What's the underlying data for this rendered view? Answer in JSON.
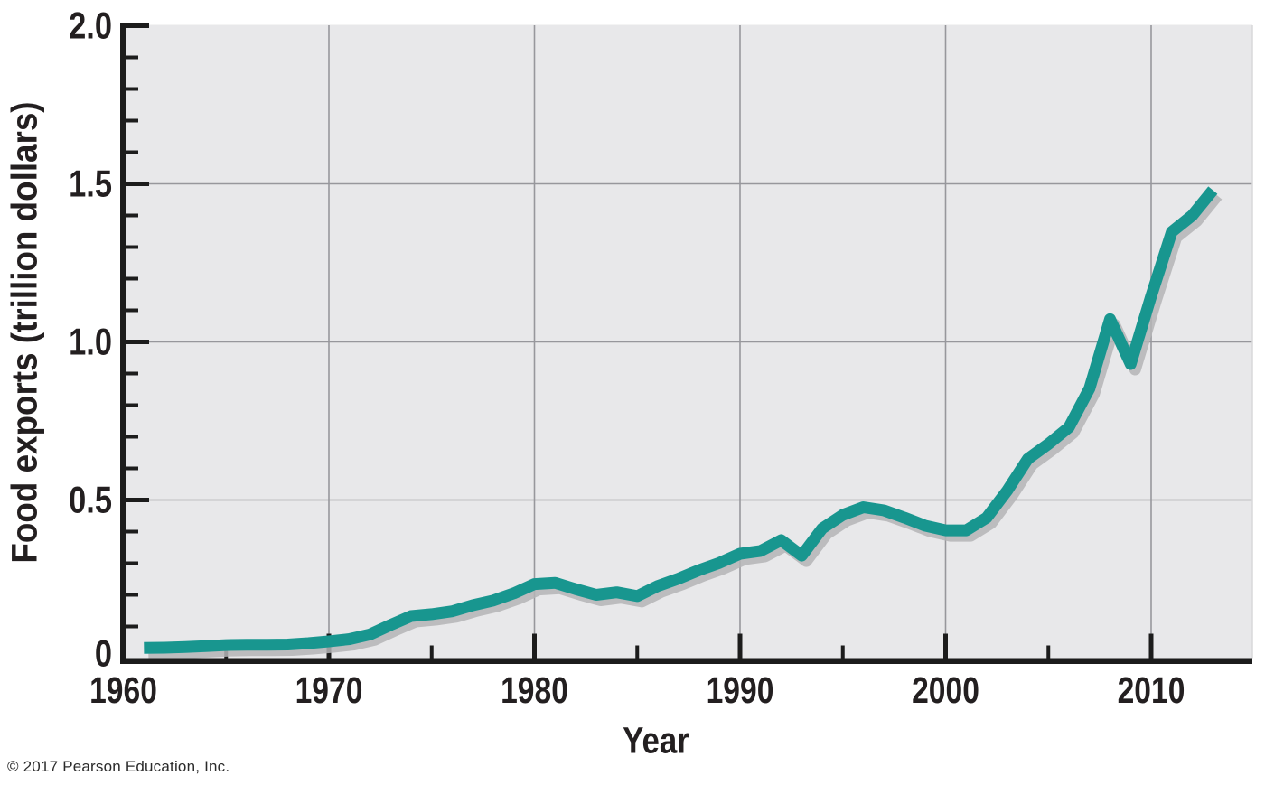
{
  "page": {
    "footer": "© 2017 Pearson Education, Inc."
  },
  "chart_data": {
    "type": "line",
    "title": "",
    "xlabel": "Year",
    "ylabel": "Food exports (trillion dollars)",
    "x_range": [
      1960,
      2015
    ],
    "y_range": [
      0,
      2.0
    ],
    "x_major_ticks": [
      1960,
      1970,
      1980,
      1990,
      2000,
      2010
    ],
    "x_minor_ticks": [
      1965,
      1975,
      1985,
      1995,
      2005
    ],
    "y_major_ticks": [
      {
        "value": 0,
        "label": "0"
      },
      {
        "value": 0.5,
        "label": "0.5"
      },
      {
        "value": 1.0,
        "label": "1.0"
      },
      {
        "value": 1.5,
        "label": "1.5"
      },
      {
        "value": 2.0,
        "label": "2.0"
      }
    ],
    "y_minor_step": 0.1,
    "grid": {
      "vertical_at": [
        1970,
        1980,
        1990,
        2000,
        2010
      ],
      "horizontal_at": [
        0.5,
        1.0,
        1.5
      ]
    },
    "legend": "none",
    "colors": {
      "plot_background": "#e8e8ea",
      "gridline": "#97979c",
      "plot_right_edge": "#d8d8da",
      "axis": "#1c1c1c",
      "text": "#231f20",
      "line": "#18968f",
      "line_shadow": "#b4b4b6"
    },
    "series": [
      {
        "name": "food_exports",
        "color": "#18968f",
        "x": [
          1961,
          1962,
          1963,
          1964,
          1965,
          1966,
          1967,
          1968,
          1969,
          1970,
          1971,
          1972,
          1973,
          1974,
          1975,
          1976,
          1977,
          1978,
          1979,
          1980,
          1981,
          1982,
          1983,
          1984,
          1985,
          1986,
          1987,
          1988,
          1989,
          1990,
          1991,
          1992,
          1993,
          1994,
          1995,
          1996,
          1997,
          1998,
          1999,
          2000,
          2001,
          2002,
          2003,
          2004,
          2005,
          2006,
          2007,
          2008,
          2009,
          2010,
          2011,
          2012,
          2013
        ],
        "values": [
          0.032,
          0.033,
          0.035,
          0.038,
          0.041,
          0.042,
          0.042,
          0.043,
          0.047,
          0.053,
          0.06,
          0.075,
          0.105,
          0.133,
          0.139,
          0.148,
          0.167,
          0.182,
          0.205,
          0.234,
          0.238,
          0.218,
          0.2,
          0.208,
          0.196,
          0.228,
          0.251,
          0.278,
          0.301,
          0.33,
          0.339,
          0.373,
          0.324,
          0.41,
          0.453,
          0.477,
          0.467,
          0.444,
          0.419,
          0.404,
          0.404,
          0.444,
          0.53,
          0.63,
          0.677,
          0.73,
          0.853,
          1.072,
          0.93,
          1.145,
          1.348,
          1.4,
          1.48
        ]
      }
    ]
  }
}
